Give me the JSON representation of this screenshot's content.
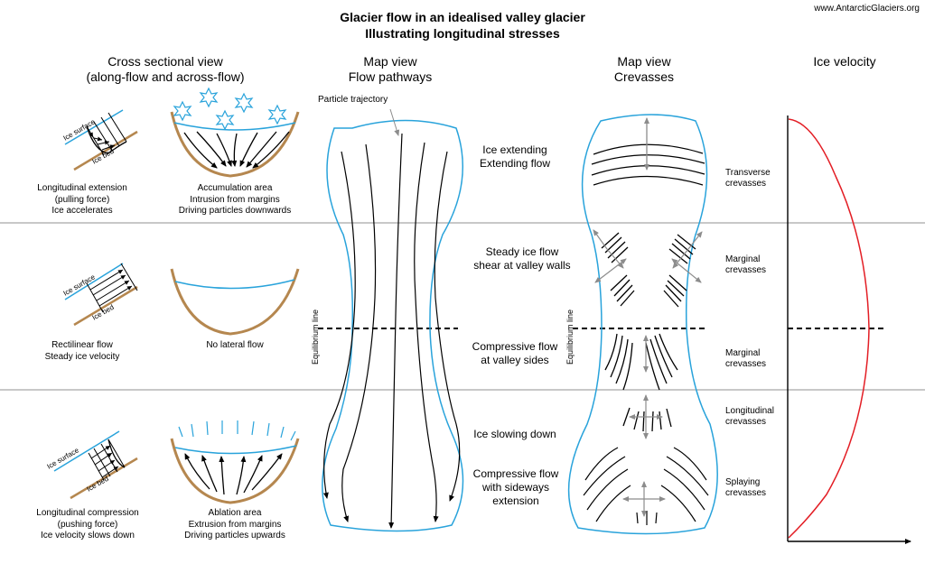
{
  "title_line1": "Glacier flow in an idealised valley glacier",
  "title_line2": "Illustrating longitudinal stresses",
  "credit": "www.AntarcticGlaciers.org",
  "columns": {
    "cross_line1": "Cross sectional view",
    "cross_line2": "(along-flow and across-flow)",
    "flow_line1": "Map view",
    "flow_line2": "Flow pathways",
    "crev_line1": "Map view",
    "crev_line2": "Crevasses",
    "velocity": "Ice velocity"
  },
  "labels": {
    "ice_surface": "Ice surface",
    "ice_bed": "Ice bed",
    "particle_trajectory": "Particle trajectory",
    "equilibrium_line": "Equilibrium line"
  },
  "zone1": {
    "long_line1": "Longitudinal extension",
    "long_line2": "(pulling force)",
    "long_line3": "Ice accelerates",
    "lat_line1": "Accumulation area",
    "lat_line2": "Intrusion from margins",
    "lat_line3": "Driving particles downwards",
    "mid_line1": "Ice extending",
    "mid_line2": "Extending flow",
    "crev_line1": "Transverse",
    "crev_line2": "crevasses"
  },
  "zone2": {
    "long_line1": "Rectilinear flow",
    "long_line2": "Steady ice velocity",
    "lat_line1": "No lateral flow",
    "mid_a_line1": "Steady ice flow",
    "mid_a_line2": "shear at valley walls",
    "mid_b_line1": "Compressive flow",
    "mid_b_line2": "at valley sides",
    "crev_a_line1": "Marginal",
    "crev_a_line2": "crevasses",
    "crev_b_line1": "Marginal",
    "crev_b_line2": "crevasses"
  },
  "zone3": {
    "long_line1": "Longitudinal compression",
    "long_line2": "(pushing force)",
    "long_line3": "Ice velocity slows down",
    "lat_line1": "Ablation area",
    "lat_line2": "Extrusion from margins",
    "lat_line3": "Driving particles upwards",
    "mid_a_line1": "Ice slowing down",
    "mid_b_line1": "Compressive flow",
    "mid_b_line2": "with sideways",
    "mid_b_line3": "extension",
    "crev_a_line1": "Longitudinal",
    "crev_a_line2": "crevasses",
    "crev_b_line1": "Splaying",
    "crev_b_line2": "crevasses"
  },
  "colors": {
    "ice": "#29a3db",
    "bed": "#b5874f",
    "velocity": "#e31e25",
    "divider": "#a8a8a8",
    "arrow_grey": "#8c8c8c"
  }
}
